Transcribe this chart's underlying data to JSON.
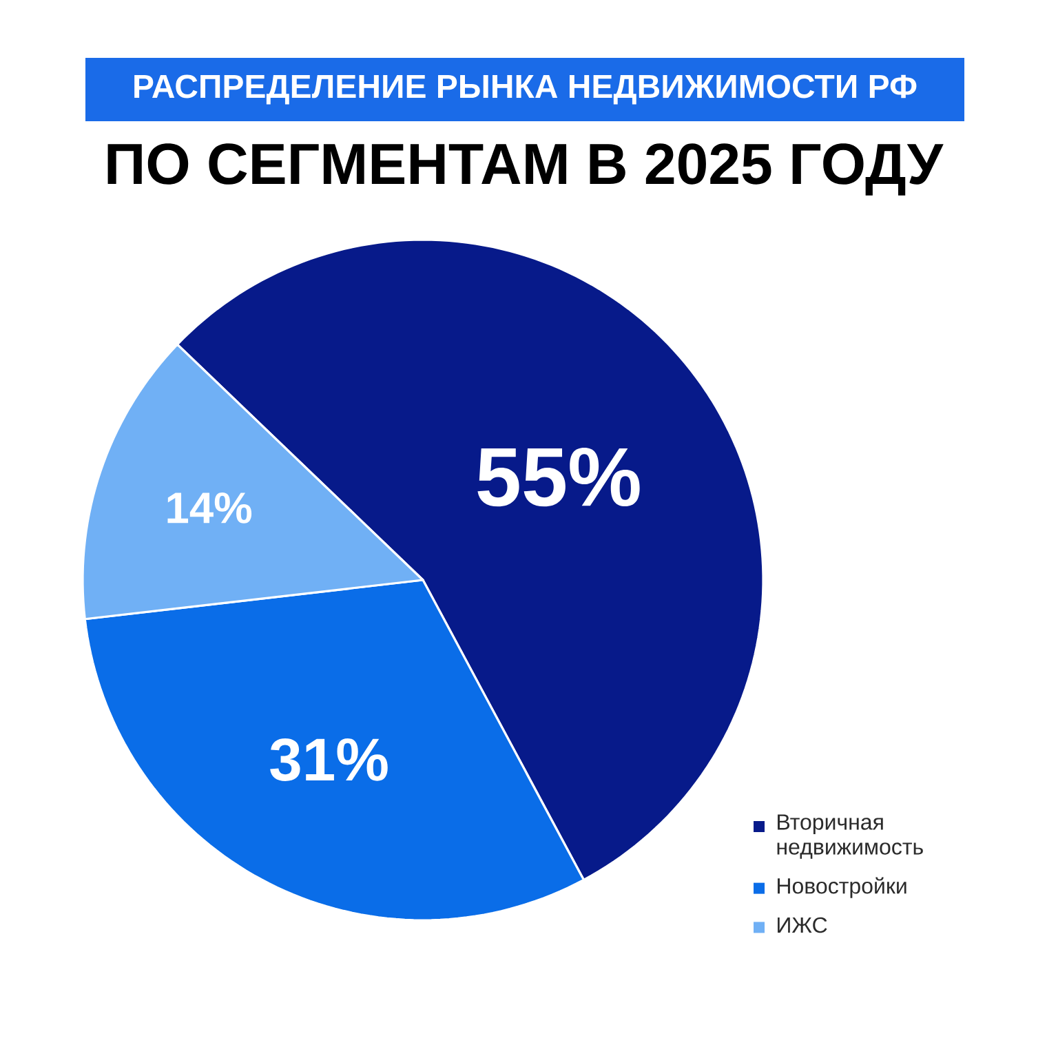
{
  "chart_data": {
    "type": "pie",
    "title": "РАСПРЕДЕЛЕНИЕ РЫНКА НЕДВИЖИМОСТИ РФ",
    "subtitle": "ПО СЕГМЕНТАМ В 2025 ГОДУ",
    "categories": [
      "Вторичная недвижимость",
      "Новостройки",
      "ИЖС"
    ],
    "values": [
      55,
      31,
      14
    ],
    "colors": [
      "#071a8a",
      "#0a6de8",
      "#70b0f5"
    ],
    "value_labels": [
      "55%",
      "31%",
      "14%"
    ],
    "legend": "bottom right"
  }
}
